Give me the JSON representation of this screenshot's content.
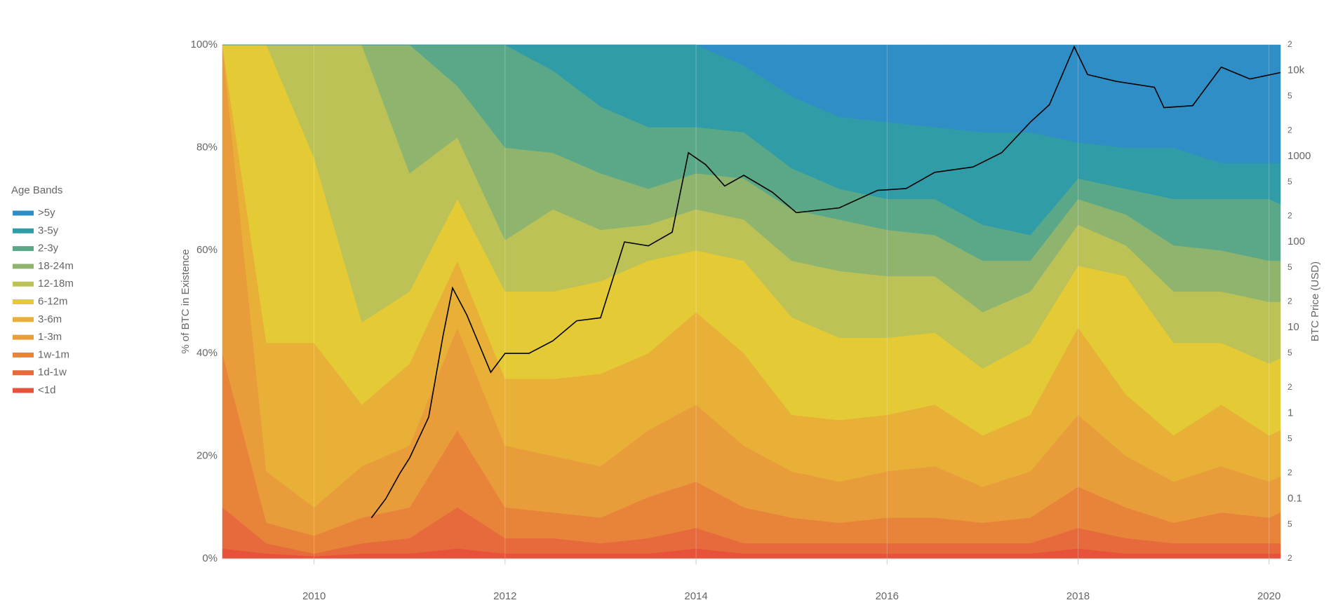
{
  "chart_data": {
    "type": "stacked-area",
    "y_label": "% of BTC in Existence",
    "y2_label": "BTC Price (USD)",
    "legend_title": "Age Bands",
    "legend": "left",
    "grid": true,
    "x": [
      2009.04,
      2009.5,
      2010,
      2010.5,
      2011,
      2011.5,
      2012,
      2012.5,
      2013,
      2013.5,
      2014,
      2014.5,
      2015,
      2015.5,
      2016,
      2016.5,
      2017,
      2017.5,
      2018,
      2018.5,
      2019,
      2019.5,
      2020,
      2020.12
    ],
    "xlim": [
      2009.04,
      2020.12
    ],
    "xticks": [
      2010,
      2012,
      2014,
      2016,
      2018,
      2020
    ],
    "ylim": [
      0,
      100
    ],
    "yticks": [
      {
        "value": 0,
        "label": "0%"
      },
      {
        "value": 20,
        "label": "20%"
      },
      {
        "value": 40,
        "label": "40%"
      },
      {
        "value": 60,
        "label": "60%"
      },
      {
        "value": 80,
        "label": "80%"
      },
      {
        "value": 100,
        "label": "100%"
      }
    ],
    "y2scale": "log",
    "y2lim": [
      0.02,
      20000
    ],
    "y2ticks": [
      {
        "value": 0.02,
        "label": "2"
      },
      {
        "value": 0.05,
        "label": "5"
      },
      0.1,
      {
        "value": 0.2,
        "label": "2"
      },
      {
        "value": 0.5,
        "label": "5"
      },
      1,
      2,
      5,
      10,
      {
        "value": 20,
        "label": "2"
      },
      {
        "value": 50,
        "label": "5"
      },
      100,
      {
        "value": 200,
        "label": "2"
      },
      {
        "value": 500,
        "label": "5"
      },
      1000,
      {
        "value": 2000,
        "label": "2"
      },
      {
        "value": 5000,
        "label": "5"
      },
      {
        "value": 10000,
        "label": "10k"
      },
      {
        "value": 20000,
        "label": "2"
      }
    ],
    "series": [
      {
        "name": "<1d",
        "color": "#e6533a",
        "values": [
          2,
          1,
          0.5,
          1,
          1,
          2,
          1,
          1,
          1,
          1,
          2,
          1,
          1,
          1,
          1,
          1,
          1,
          1,
          2,
          1,
          1,
          1,
          1,
          1
        ]
      },
      {
        "name": "1d-1w",
        "color": "#e66a3b",
        "values": [
          8,
          2,
          0.5,
          2,
          3,
          8,
          3,
          3,
          2,
          3,
          4,
          2,
          2,
          2,
          2,
          2,
          2,
          2,
          4,
          3,
          2,
          2,
          2,
          2
        ]
      },
      {
        "name": "1w-1m",
        "color": "#e8843a",
        "values": [
          30,
          4,
          3.5,
          5,
          6,
          15,
          6,
          5,
          5,
          8,
          9,
          7,
          5,
          4,
          5,
          5,
          4,
          5,
          8,
          6,
          4,
          6,
          5,
          6
        ]
      },
      {
        "name": "1-3m",
        "color": "#e89c3a",
        "values": [
          60,
          10,
          5.5,
          10,
          12,
          20,
          12,
          11,
          10,
          13,
          15,
          12,
          9,
          8,
          9,
          10,
          7,
          9,
          14,
          10,
          8,
          9,
          7,
          7
        ]
      },
      {
        "name": "3-6m",
        "color": "#e8b036",
        "values": [
          0,
          25,
          32,
          12,
          16,
          13,
          13,
          15,
          18,
          15,
          18,
          18,
          11,
          12,
          11,
          12,
          10,
          11,
          17,
          12,
          9,
          12,
          9,
          9
        ]
      },
      {
        "name": "6-12m",
        "color": "#e4cb35",
        "values": [
          0,
          58,
          36,
          16,
          14,
          12,
          17,
          17,
          18,
          18,
          12,
          18,
          19,
          16,
          15,
          14,
          13,
          14,
          12,
          23,
          18,
          12,
          14,
          14
        ]
      },
      {
        "name": "12-18m",
        "color": "#bcc255",
        "values": [
          0,
          0,
          22,
          54,
          23,
          12,
          10,
          16,
          10,
          7,
          8,
          8,
          11,
          13,
          12,
          11,
          11,
          10,
          8,
          6,
          10,
          10,
          12,
          11
        ]
      },
      {
        "name": "18-24m",
        "color": "#8fb46e",
        "values": [
          0,
          0,
          0,
          0,
          25,
          10,
          18,
          11,
          11,
          7,
          7,
          8,
          10,
          10,
          9,
          8,
          10,
          6,
          5,
          6,
          9,
          8,
          8,
          8
        ]
      },
      {
        "name": "2-3y",
        "color": "#5aa888",
        "values": [
          0,
          0,
          0,
          0,
          0,
          8,
          20,
          16,
          13,
          12,
          9,
          9,
          8,
          6,
          6,
          7,
          7,
          5,
          4,
          5,
          9,
          10,
          12,
          11
        ]
      },
      {
        "name": "3-5y",
        "color": "#2f9ca7",
        "values": [
          0,
          0,
          0,
          0,
          0,
          0,
          0,
          5,
          12,
          16,
          16,
          13,
          14,
          14,
          15,
          14,
          18,
          20,
          7,
          8,
          10,
          7,
          7,
          8
        ]
      },
      {
        "name": ">5y",
        "color": "#2f8ec6",
        "values": [
          0,
          0,
          0,
          0,
          0,
          0,
          0,
          0,
          0,
          0,
          0,
          4,
          10,
          14,
          15,
          16,
          17,
          17,
          19,
          20,
          20,
          23,
          23,
          23
        ]
      }
    ],
    "line": {
      "color": "#000000",
      "axis": "y2",
      "x": [
        2010.6,
        2010.75,
        2010.9,
        2011,
        2011.2,
        2011.35,
        2011.45,
        2011.6,
        2011.85,
        2012,
        2012.25,
        2012.5,
        2012.75,
        2013,
        2013.25,
        2013.5,
        2013.75,
        2013.92,
        2014.1,
        2014.3,
        2014.5,
        2014.8,
        2015.05,
        2015.5,
        2015.9,
        2016.2,
        2016.5,
        2016.9,
        2017.2,
        2017.5,
        2017.7,
        2017.96,
        2018.1,
        2018.4,
        2018.8,
        2018.9,
        2019.2,
        2019.5,
        2019.8,
        2020.12
      ],
      "values": [
        0.06,
        0.1,
        0.2,
        0.3,
        0.9,
        8,
        29,
        14,
        3,
        5,
        5,
        7,
        12,
        13,
        100,
        90,
        130,
        1100,
        800,
        450,
        600,
        380,
        220,
        250,
        400,
        420,
        650,
        750,
        1100,
        2500,
        4000,
        19000,
        9000,
        7500,
        6400,
        3700,
        3900,
        11000,
        8000,
        9500
      ]
    }
  }
}
